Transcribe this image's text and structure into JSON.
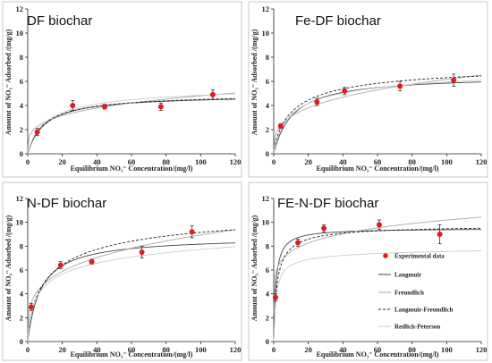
{
  "figure": {
    "xlabel": "Equilibrium NO₃⁻ Concentration/(mg/l)",
    "ylabel": "Amount of NO₃⁻ Adsorbed /(mg/g)"
  },
  "legend": {
    "items": [
      {
        "label": "Experimental data",
        "kind": "marker",
        "color": "#e41a1c"
      },
      {
        "label": "Langmuir",
        "kind": "line",
        "color": "#444444",
        "dash": "solid"
      },
      {
        "label": "Freundlich",
        "kind": "line",
        "color": "#aaaaaa",
        "dash": "solid"
      },
      {
        "label": "Langmuir-Freundlich",
        "kind": "line",
        "color": "#222222",
        "dash": "dashed"
      },
      {
        "label": "Redlich-Peterson",
        "kind": "line",
        "color": "#cccccc",
        "dash": "solid"
      }
    ]
  },
  "chart_data": [
    {
      "type": "scatter",
      "title": "DF biochar",
      "xlabel": "Equilibrium NO₃⁻ Concentration/(mg/l)",
      "ylabel": "Amount of NO₃⁻ Adsorbed /(mg/g)",
      "xlim": [
        0,
        120
      ],
      "ylim": [
        0,
        12
      ],
      "xticks": [
        0,
        20,
        40,
        60,
        80,
        100,
        120
      ],
      "yticks": [
        0,
        2,
        4,
        6,
        8,
        10,
        12
      ],
      "experimental": {
        "x": [
          5.5,
          26,
          44.5,
          77,
          107
        ],
        "y": [
          1.8,
          4.0,
          3.9,
          3.9,
          4.9
        ],
        "err": [
          0.3,
          0.4,
          0.2,
          0.3,
          0.4
        ]
      },
      "series": [
        {
          "name": "Langmuir",
          "model": "langmuir",
          "params": {
            "qm": 4.9,
            "KL": 0.1
          }
        },
        {
          "name": "Freundlich",
          "model": "freundlich",
          "params": {
            "KF": 1.45,
            "n": 0.26
          }
        },
        {
          "name": "Langmuir-Freundlich",
          "model": "sips",
          "params": {
            "qm": 5.0,
            "K": 0.1,
            "n": 0.95
          }
        },
        {
          "name": "Redlich-Peterson",
          "model": "rp",
          "params": {
            "K": 0.6,
            "a": 0.15,
            "b": 0.94
          }
        }
      ]
    },
    {
      "type": "scatter",
      "title": "Fe-DF biochar",
      "xlabel": "Equilibrium NO₃⁻ Concentration/(mg/l)",
      "ylabel": "Amount of NO₃⁻ Adsorbed /(mg/g)",
      "xlim": [
        0,
        120
      ],
      "ylim": [
        0,
        12
      ],
      "xticks": [
        0,
        20,
        40,
        60,
        80,
        100,
        120
      ],
      "yticks": [
        0,
        2,
        4,
        6,
        8,
        10,
        12
      ],
      "experimental": {
        "x": [
          4,
          25,
          41,
          73,
          104
        ],
        "y": [
          2.3,
          4.3,
          5.2,
          5.6,
          6.1
        ],
        "err": [
          0.2,
          0.3,
          0.3,
          0.4,
          0.5
        ]
      },
      "series": [
        {
          "name": "Langmuir",
          "model": "langmuir",
          "params": {
            "qm": 6.5,
            "KL": 0.09
          }
        },
        {
          "name": "Freundlich",
          "model": "freundlich",
          "params": {
            "KF": 1.55,
            "n": 0.3
          }
        },
        {
          "name": "Langmuir-Freundlich",
          "model": "sips",
          "params": {
            "qm": 7.5,
            "K": 0.08,
            "n": 0.8
          }
        },
        {
          "name": "Redlich-Peterson",
          "model": "rp",
          "params": {
            "K": 0.8,
            "a": 0.18,
            "b": 0.92
          }
        }
      ]
    },
    {
      "type": "scatter",
      "title": "N-DF biochar",
      "xlabel": "Equilibrium NO₃⁻ Concentration/(mg/l)",
      "ylabel": "Amount of NO₃⁻ Adsorbed /(mg/g)",
      "xlim": [
        0,
        120
      ],
      "ylim": [
        0,
        12
      ],
      "xticks": [
        0,
        20,
        40,
        60,
        80,
        100,
        120
      ],
      "yticks": [
        0,
        2,
        4,
        6,
        8,
        10,
        12
      ],
      "experimental": {
        "x": [
          2,
          19,
          37,
          66,
          95
        ],
        "y": [
          2.9,
          6.4,
          6.7,
          7.5,
          9.2
        ],
        "err": [
          0.3,
          0.3,
          0.2,
          0.5,
          0.5
        ]
      },
      "series": [
        {
          "name": "Langmuir",
          "model": "langmuir",
          "params": {
            "qm": 8.8,
            "KL": 0.13
          }
        },
        {
          "name": "Freundlich",
          "model": "freundlich",
          "params": {
            "KF": 2.7,
            "n": 0.26
          }
        },
        {
          "name": "Langmuir-Freundlich",
          "model": "sips",
          "params": {
            "qm": 11.5,
            "K": 0.07,
            "n": 0.7
          }
        },
        {
          "name": "Redlich-Peterson",
          "model": "rp",
          "params": {
            "K": 2.2,
            "a": 0.5,
            "b": 0.87
          }
        }
      ]
    },
    {
      "type": "scatter",
      "title": "FE-N-DF biochar",
      "xlabel": "Equilibrium NO₃⁻ Concentration/(mg/l)",
      "ylabel": "Amount of NO₃⁻ Adsorbed /(mg/g)",
      "xlim": [
        0,
        120
      ],
      "ylim": [
        0,
        12
      ],
      "xticks": [
        0,
        20,
        40,
        60,
        80,
        100,
        120
      ],
      "yticks": [
        0,
        2,
        4,
        6,
        8,
        10,
        12
      ],
      "experimental": {
        "x": [
          1,
          14,
          29,
          61,
          96
        ],
        "y": [
          3.7,
          8.3,
          9.5,
          9.8,
          9.0
        ],
        "err": [
          0.3,
          0.3,
          0.3,
          0.4,
          0.8
        ]
      },
      "series": [
        {
          "name": "Langmuir",
          "model": "langmuir",
          "params": {
            "qm": 9.5,
            "KL": 0.8
          }
        },
        {
          "name": "Freundlich",
          "model": "freundlich",
          "params": {
            "KF": 5.6,
            "n": 0.13
          }
        },
        {
          "name": "Langmuir-Freundlich",
          "model": "sips",
          "params": {
            "qm": 9.8,
            "K": 0.5,
            "n": 0.85
          }
        },
        {
          "name": "Redlich-Peterson",
          "model": "rp",
          "params": {
            "K": 6.0,
            "a": 0.9,
            "b": 0.97
          }
        }
      ]
    }
  ]
}
